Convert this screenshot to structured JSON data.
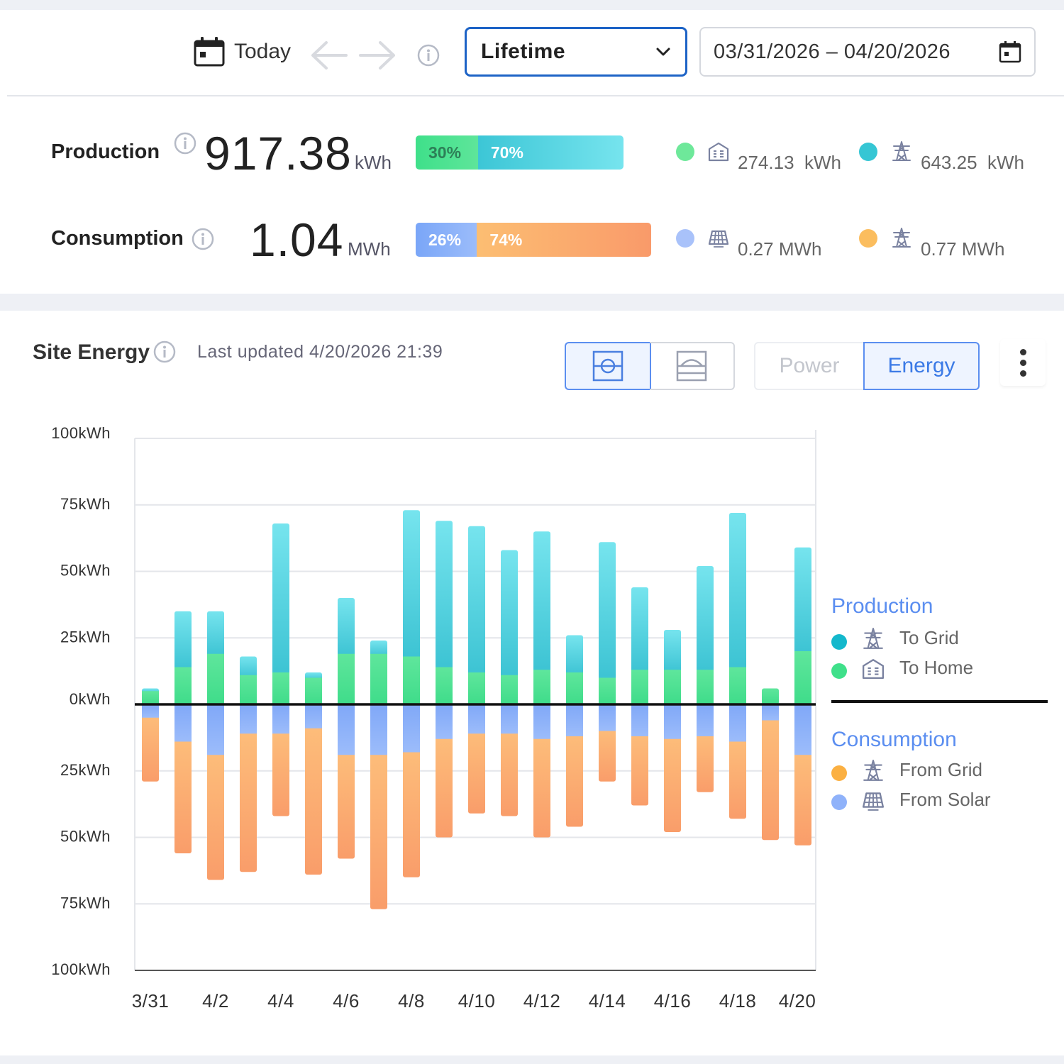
{
  "toolbar": {
    "today_label": "Today",
    "period_select": "Lifetime",
    "date_range": "03/31/2026 – 04/20/2026"
  },
  "summary": {
    "production": {
      "label": "Production",
      "value": "917.38",
      "unit": "kWh",
      "split": [
        {
          "pct_label": "30%",
          "fraction": 0.3,
          "color": "#4fe28f"
        },
        {
          "pct_label": "70%",
          "fraction": 0.7,
          "color": "#41c9d8"
        }
      ],
      "legend": [
        {
          "icon": "home-icon",
          "value": "274.13",
          "unit": "kWh",
          "color": "#6ee89a"
        },
        {
          "icon": "power-tower-icon",
          "value": "643.25",
          "unit": "kWh",
          "color": "#35c6d4"
        }
      ]
    },
    "consumption": {
      "label": "Consumption",
      "value": "1.04",
      "unit": "MWh",
      "split": [
        {
          "pct_label": "26%",
          "fraction": 0.26,
          "color": "#7ea9f8"
        },
        {
          "pct_label": "74%",
          "fraction": 0.74,
          "color": "#fba06e"
        }
      ],
      "legend": [
        {
          "icon": "solar-panel-icon",
          "value": "0.27 MWh",
          "color": "#a9c2fa"
        },
        {
          "icon": "power-tower-icon",
          "value": "0.77 MWh",
          "color": "#fbbd5e"
        }
      ]
    }
  },
  "site_energy": {
    "title": "Site Energy",
    "last_updated": "Last updated 4/20/2026 21:39",
    "toggle_power": "Power",
    "toggle_energy": "Energy",
    "legend": {
      "production_heading": "Production",
      "to_grid": "To Grid",
      "to_home": "To Home",
      "consumption_heading": "Consumption",
      "from_grid": "From Grid",
      "from_solar": "From Solar",
      "colors": {
        "to_grid": "#14b8cc",
        "to_home": "#3fe08a",
        "from_grid": "#fbb042",
        "from_solar": "#8fb2fa"
      }
    }
  },
  "chart_data": {
    "type": "bar",
    "stacked": true,
    "y_unit": "kWh",
    "ylim": [
      -100,
      100
    ],
    "y_ticks": [
      {
        "value": 100,
        "label": "100kWh"
      },
      {
        "value": 75,
        "label": "75kWh"
      },
      {
        "value": 50,
        "label": "50kWh"
      },
      {
        "value": 25,
        "label": "25kWh"
      },
      {
        "value": 0,
        "label": "0kWh"
      },
      {
        "value": -25,
        "label": "25kWh"
      },
      {
        "value": -50,
        "label": "50kWh"
      },
      {
        "value": -75,
        "label": "75kWh"
      },
      {
        "value": -100,
        "label": "100kWh"
      }
    ],
    "grid": true,
    "categories": [
      "3/31",
      "4/1",
      "4/2",
      "4/3",
      "4/4",
      "4/5",
      "4/6",
      "4/7",
      "4/8",
      "4/9",
      "4/10",
      "4/11",
      "4/12",
      "4/13",
      "4/14",
      "4/15",
      "4/16",
      "4/17",
      "4/18",
      "4/19",
      "4/20"
    ],
    "x_tick_labels": [
      "3/31",
      "4/2",
      "4/4",
      "4/6",
      "4/8",
      "4/10",
      "4/12",
      "4/14",
      "4/16",
      "4/18",
      "4/20"
    ],
    "series": [
      {
        "name": "To Home",
        "values": [
          5,
          14,
          19,
          11,
          12,
          10,
          19,
          19,
          18,
          14,
          12,
          11,
          13,
          12,
          10,
          13,
          13,
          13,
          14,
          6,
          20
        ]
      },
      {
        "name": "To Grid",
        "values": [
          1,
          21,
          16,
          7,
          56,
          2,
          21,
          5,
          55,
          55,
          55,
          47,
          52,
          14,
          51,
          31,
          15,
          39,
          58,
          0,
          39
        ]
      },
      {
        "name": "From Solar",
        "values": [
          -5,
          -14,
          -19,
          -11,
          -11,
          -9,
          -19,
          -19,
          -18,
          -13,
          -11,
          -11,
          -13,
          -12,
          -10,
          -12,
          -13,
          -12,
          -14,
          -6,
          -19
        ]
      },
      {
        "name": "From Grid",
        "values": [
          -24,
          -42,
          -47,
          -52,
          -31,
          -55,
          -39,
          -58,
          -47,
          -37,
          -30,
          -31,
          -37,
          -34,
          -19,
          -26,
          -35,
          -21,
          -29,
          -45,
          -34
        ]
      }
    ]
  }
}
